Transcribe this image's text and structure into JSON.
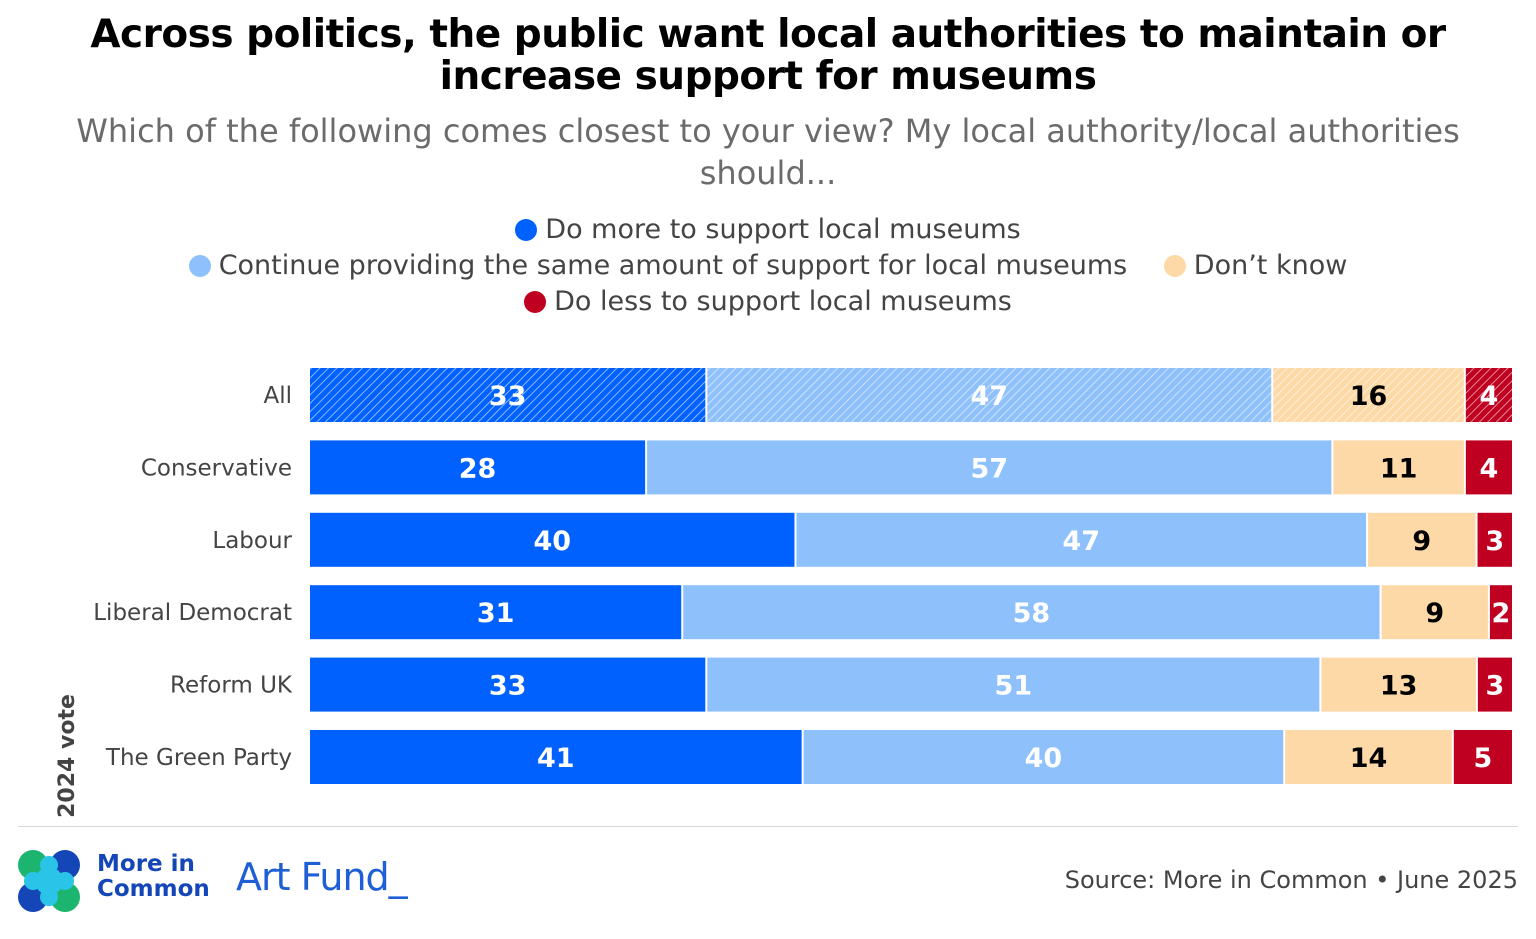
{
  "title": "Across politics, the public want local authorities to maintain or increase support for museums",
  "subtitle": "Which of the following comes closest to your view? My local authority/local authorities should...",
  "legend": {
    "more": "Do more to support local museums",
    "same": "Continue providing the same amount of support for local museums",
    "dont_know": "Don’t know",
    "less": "Do less to support local museums"
  },
  "footer": {
    "brand_line1": "More in",
    "brand_line2": "Common",
    "partner": "Art Fund_",
    "source": "Source: More in Common • June 2025"
  },
  "chart_data": {
    "type": "bar",
    "orientation": "horizontal",
    "stacked": true,
    "axis_title": "2024 vote",
    "categories": [
      "All",
      "Conservative",
      "Labour",
      "Liberal Democrat",
      "Reform UK",
      "The Green Party"
    ],
    "series": [
      {
        "name": "Do more to support local museums",
        "color": "#0061ff",
        "label_color": "#ffffff",
        "values": [
          33,
          28,
          40,
          31,
          33,
          41
        ]
      },
      {
        "name": "Continue providing the same amount of support for local museums",
        "color": "#8ec0fb",
        "label_color": "#ffffff",
        "values": [
          47,
          57,
          47,
          58,
          51,
          40
        ]
      },
      {
        "name": "Don’t know",
        "color": "#fdd9a8",
        "label_color": "#000000",
        "values": [
          16,
          11,
          9,
          9,
          13,
          14
        ]
      },
      {
        "name": "Do less to support local museums",
        "color": "#c00020",
        "label_color": "#ffffff",
        "values": [
          4,
          4,
          3,
          2,
          3,
          5
        ]
      }
    ],
    "hatched_categories": [
      "All"
    ]
  }
}
